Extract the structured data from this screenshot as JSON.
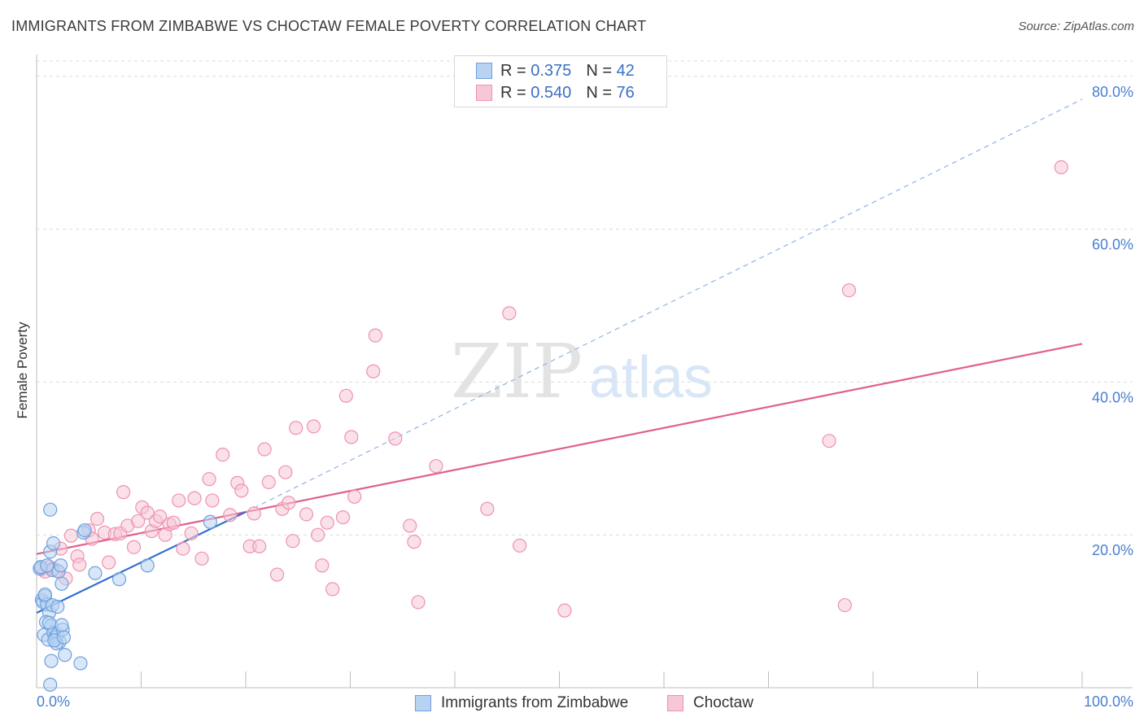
{
  "header": {
    "title": "IMMIGRANTS FROM ZIMBABWE VS CHOCTAW FEMALE POVERTY CORRELATION CHART",
    "source": "Source: ZipAtlas.com"
  },
  "watermark": {
    "zip": "ZIP",
    "atlas": "atlas"
  },
  "legend_top": {
    "r_label": "R =",
    "n_label": "N =",
    "series": [
      {
        "r": "0.375",
        "n": "42"
      },
      {
        "r": "0.540",
        "n": "76"
      }
    ]
  },
  "legend_bottom": {
    "items": [
      {
        "label": "Immigrants from Zimbabwe"
      },
      {
        "label": "Choctaw"
      }
    ]
  },
  "colors": {
    "blue_fill": "#b8d3f2",
    "blue_stroke": "#6fa0dc",
    "blue_line": "#2f6fd0",
    "pink_fill": "#f6c7d6",
    "pink_stroke": "#ee92b0",
    "pink_line": "#e0608c",
    "tick_label": "#4a7fd0",
    "grid": "#dcdcdc"
  },
  "chart_data": {
    "type": "scatter",
    "title": "IMMIGRANTS FROM ZIMBABWE VS CHOCTAW FEMALE POVERTY CORRELATION CHART",
    "xlabel": "",
    "ylabel": "Female Poverty",
    "xlim": [
      0,
      100
    ],
    "ylim": [
      0,
      82
    ],
    "x_tick_labels": [
      {
        "value": 0,
        "label": "0.0%"
      },
      {
        "value": 100,
        "label": "100.0%"
      }
    ],
    "y_tick_labels": [
      {
        "value": 20,
        "label": "20.0%"
      },
      {
        "value": 40,
        "label": "40.0%"
      },
      {
        "value": 60,
        "label": "60.0%"
      },
      {
        "value": 80,
        "label": "80.0%"
      }
    ],
    "x_minor_ticks": [
      0,
      10,
      20,
      30,
      40,
      50,
      60,
      70,
      80,
      90,
      100
    ],
    "series": [
      {
        "name": "Immigrants from Zimbabwe",
        "r": 0.375,
        "n": 42,
        "trend": {
          "solid": [
            [
              0,
              9.8
            ],
            [
              20,
              23.0
            ]
          ],
          "dashed": [
            [
              20,
              23.0
            ],
            [
              100,
              77
            ]
          ]
        },
        "points": [
          [
            0.3,
            15.6
          ],
          [
            0.5,
            11.5
          ],
          [
            0.6,
            11.2
          ],
          [
            0.8,
            12.0
          ],
          [
            1.0,
            10.9
          ],
          [
            1.2,
            9.8
          ],
          [
            0.9,
            8.6
          ],
          [
            1.4,
            8.1
          ],
          [
            0.7,
            6.9
          ],
          [
            1.1,
            6.3
          ],
          [
            1.6,
            7.2
          ],
          [
            1.8,
            6.6
          ],
          [
            2.0,
            7.0
          ],
          [
            2.2,
            6.0
          ],
          [
            2.5,
            7.6
          ],
          [
            1.9,
            5.8
          ],
          [
            1.3,
            17.8
          ],
          [
            1.5,
            15.4
          ],
          [
            2.1,
            15.2
          ],
          [
            1.5,
            10.8
          ],
          [
            2.0,
            10.6
          ],
          [
            2.4,
            8.2
          ],
          [
            1.7,
            6.2
          ],
          [
            2.6,
            6.6
          ],
          [
            1.4,
            3.5
          ],
          [
            2.7,
            4.3
          ],
          [
            4.2,
            3.2
          ],
          [
            1.3,
            0.4
          ],
          [
            1.3,
            23.3
          ],
          [
            1.6,
            18.9
          ],
          [
            4.5,
            20.3
          ],
          [
            4.6,
            20.6
          ],
          [
            2.4,
            13.6
          ],
          [
            5.6,
            15.0
          ],
          [
            7.9,
            14.2
          ],
          [
            10.6,
            16.0
          ],
          [
            16.6,
            21.7
          ],
          [
            0.4,
            15.8
          ],
          [
            1.0,
            16.0
          ],
          [
            2.3,
            16.0
          ],
          [
            0.8,
            12.2
          ],
          [
            1.2,
            8.5
          ]
        ]
      },
      {
        "name": "Choctaw",
        "r": 0.54,
        "n": 76,
        "trend": {
          "solid": [
            [
              0,
              17.5
            ],
            [
              100,
              45
            ]
          ]
        },
        "points": [
          [
            0.5,
            15.5
          ],
          [
            0.8,
            15.2
          ],
          [
            1.2,
            15.8
          ],
          [
            1.6,
            15.6
          ],
          [
            2.0,
            15.3
          ],
          [
            2.3,
            18.2
          ],
          [
            2.8,
            14.3
          ],
          [
            3.3,
            19.9
          ],
          [
            3.9,
            17.2
          ],
          [
            4.1,
            16.1
          ],
          [
            5.0,
            20.6
          ],
          [
            5.3,
            19.5
          ],
          [
            5.8,
            22.1
          ],
          [
            6.5,
            20.3
          ],
          [
            6.9,
            16.4
          ],
          [
            7.5,
            20.1
          ],
          [
            8.0,
            20.2
          ],
          [
            8.3,
            25.6
          ],
          [
            8.7,
            21.2
          ],
          [
            9.3,
            18.4
          ],
          [
            9.7,
            21.8
          ],
          [
            10.1,
            23.6
          ],
          [
            10.6,
            22.9
          ],
          [
            11.0,
            20.5
          ],
          [
            11.4,
            21.8
          ],
          [
            11.8,
            22.4
          ],
          [
            12.3,
            20.0
          ],
          [
            12.7,
            21.4
          ],
          [
            13.1,
            21.6
          ],
          [
            13.6,
            24.5
          ],
          [
            14.0,
            18.2
          ],
          [
            14.8,
            20.2
          ],
          [
            15.1,
            24.8
          ],
          [
            15.8,
            16.9
          ],
          [
            16.5,
            27.3
          ],
          [
            16.8,
            24.5
          ],
          [
            17.8,
            30.5
          ],
          [
            18.5,
            22.6
          ],
          [
            19.2,
            26.8
          ],
          [
            19.6,
            25.8
          ],
          [
            20.4,
            18.5
          ],
          [
            20.8,
            22.8
          ],
          [
            21.3,
            18.5
          ],
          [
            21.8,
            31.2
          ],
          [
            22.2,
            26.9
          ],
          [
            23.0,
            14.8
          ],
          [
            23.5,
            23.4
          ],
          [
            23.8,
            28.2
          ],
          [
            24.1,
            24.2
          ],
          [
            24.5,
            19.2
          ],
          [
            24.8,
            34.0
          ],
          [
            25.8,
            22.7
          ],
          [
            26.5,
            34.2
          ],
          [
            26.9,
            20.0
          ],
          [
            27.3,
            16.0
          ],
          [
            27.8,
            21.6
          ],
          [
            28.3,
            12.9
          ],
          [
            29.3,
            22.3
          ],
          [
            29.6,
            38.2
          ],
          [
            30.1,
            32.8
          ],
          [
            30.4,
            25.0
          ],
          [
            32.2,
            41.4
          ],
          [
            32.4,
            46.1
          ],
          [
            34.3,
            32.6
          ],
          [
            35.7,
            21.2
          ],
          [
            36.1,
            19.1
          ],
          [
            36.5,
            11.2
          ],
          [
            38.2,
            29.0
          ],
          [
            43.1,
            23.4
          ],
          [
            45.2,
            49.0
          ],
          [
            46.2,
            18.6
          ],
          [
            50.5,
            10.1
          ],
          [
            75.8,
            32.3
          ],
          [
            77.3,
            10.8
          ],
          [
            77.7,
            52.0
          ],
          [
            98.0,
            68.1
          ]
        ]
      }
    ]
  }
}
